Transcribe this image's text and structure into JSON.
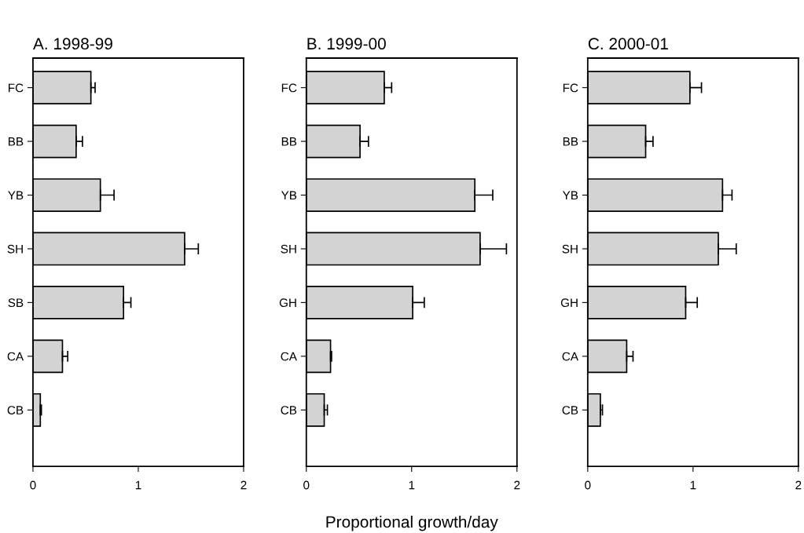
{
  "chart_data": [
    {
      "type": "bar",
      "orientation": "horizontal",
      "title": "A. 1998-99",
      "categories": [
        "FC",
        "BB",
        "YB",
        "SH",
        "SB",
        "CA",
        "CB"
      ],
      "values": [
        0.55,
        0.41,
        0.64,
        1.44,
        0.86,
        0.28,
        0.07
      ],
      "errors": [
        [
          0.55,
          0.59
        ],
        [
          0.41,
          0.47
        ],
        [
          0.64,
          0.77
        ],
        [
          1.44,
          1.57
        ],
        [
          0.86,
          0.93
        ],
        [
          0.28,
          0.33
        ],
        [
          0.07,
          0.08
        ]
      ],
      "color": "#d3d3d3",
      "xlim": [
        0,
        2
      ],
      "xticks": [
        0,
        1,
        2
      ],
      "grid": false
    },
    {
      "type": "bar",
      "orientation": "horizontal",
      "title": "B. 1999-00",
      "xlabel": "Proportional growth/day",
      "categories": [
        "FC",
        "BB",
        "YB",
        "SH",
        "GH",
        "CA",
        "CB"
      ],
      "values": [
        0.74,
        0.51,
        1.6,
        1.65,
        1.01,
        0.23,
        0.17
      ],
      "errors": [
        [
          0.74,
          0.81
        ],
        [
          0.51,
          0.59
        ],
        [
          1.6,
          1.77
        ],
        [
          1.65,
          1.9
        ],
        [
          1.01,
          1.12
        ],
        [
          0.23,
          0.24
        ],
        [
          0.17,
          0.2
        ]
      ],
      "color": "#d3d3d3",
      "xlim": [
        0,
        2
      ],
      "xticks": [
        0,
        1,
        2
      ],
      "grid": false
    },
    {
      "type": "bar",
      "orientation": "horizontal",
      "title": "C. 2000-01",
      "categories": [
        "FC",
        "BB",
        "YB",
        "SH",
        "GH",
        "CA",
        "CB"
      ],
      "values": [
        0.97,
        0.55,
        1.28,
        1.24,
        0.93,
        0.37,
        0.12
      ],
      "errors": [
        [
          0.97,
          1.08
        ],
        [
          0.55,
          0.62
        ],
        [
          1.28,
          1.37
        ],
        [
          1.24,
          1.41
        ],
        [
          0.93,
          1.04
        ],
        [
          0.37,
          0.43
        ],
        [
          0.12,
          0.14
        ]
      ],
      "color": "#d3d3d3",
      "xlim": [
        0,
        2
      ],
      "xticks": [
        0,
        1,
        2
      ],
      "grid": false
    }
  ]
}
